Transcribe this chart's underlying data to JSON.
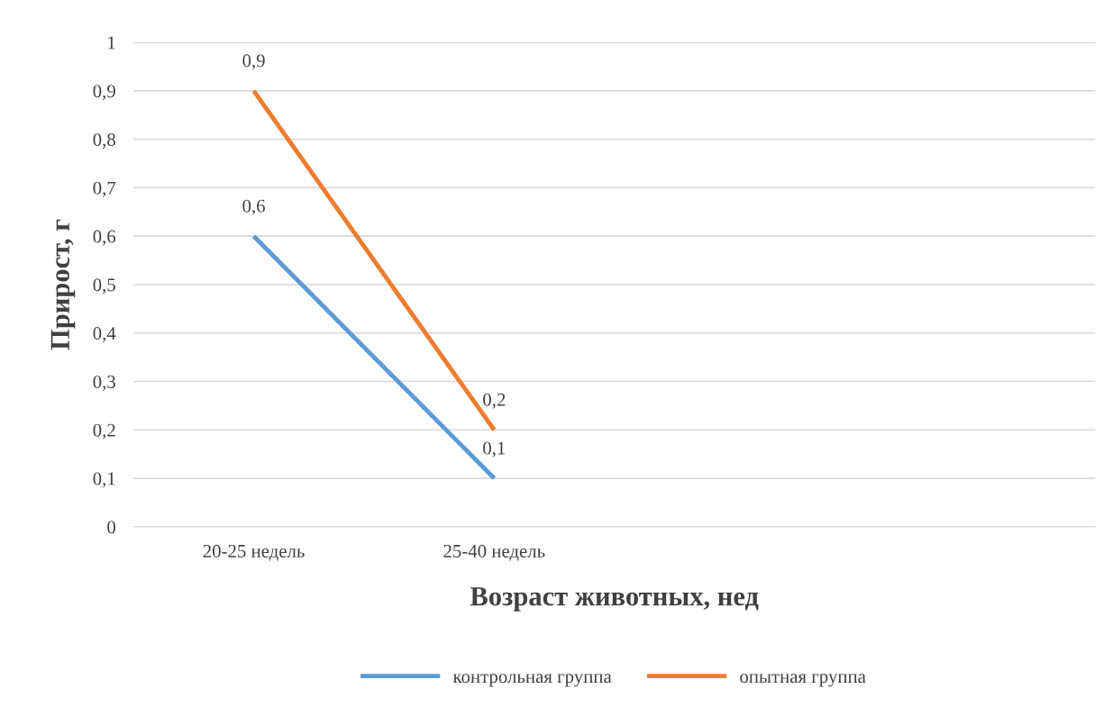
{
  "chart_data": {
    "type": "line",
    "xlabel": "Возраст животных, нед",
    "ylabel": "Прирост, г",
    "categories": [
      "20-25 недель",
      "25-40 недель",
      null,
      null
    ],
    "series": [
      {
        "name": "контрольная группа",
        "color": "#5b9bd5",
        "values": [
          0.6,
          0.1,
          null,
          null
        ],
        "value_labels": [
          "0,6",
          "0,1",
          null,
          null
        ]
      },
      {
        "name": "опытная группа",
        "color": "#ed7d31",
        "values": [
          0.9,
          0.2,
          null,
          null
        ],
        "value_labels": [
          "0,9",
          "0,2",
          null,
          null
        ]
      }
    ],
    "ylim": [
      0,
      1
    ],
    "yticks": [
      0,
      {
        "value": 0.1,
        "label": "0,1"
      },
      {
        "value": 0.2,
        "label": "0,2"
      },
      {
        "value": 0.3,
        "label": "0,3"
      },
      {
        "value": 0.4,
        "label": "0,4"
      },
      {
        "value": 0.5,
        "label": "0,5"
      },
      {
        "value": 0.6,
        "label": "0,6"
      },
      {
        "value": 0.7,
        "label": "0,7"
      },
      {
        "value": 0.8,
        "label": "0,8"
      },
      {
        "value": 0.9,
        "label": "0,9"
      },
      1
    ],
    "grid": "y",
    "legend": "bottom",
    "marker": "none",
    "line_style": "solid"
  }
}
